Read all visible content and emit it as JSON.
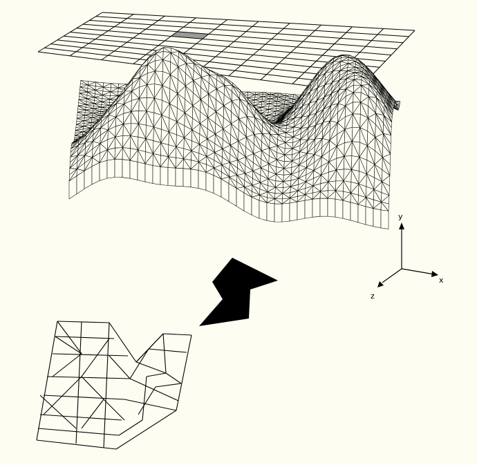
{
  "axes": {
    "x": "x",
    "y": "y",
    "z": "z"
  },
  "colors": {
    "background": "#fdfdf2",
    "line": "#000000",
    "selected_cell": "#9a9a9a"
  },
  "grid": {
    "cols": 10,
    "rows": 10,
    "selected_cell": {
      "col": 3,
      "row": 3
    }
  }
}
